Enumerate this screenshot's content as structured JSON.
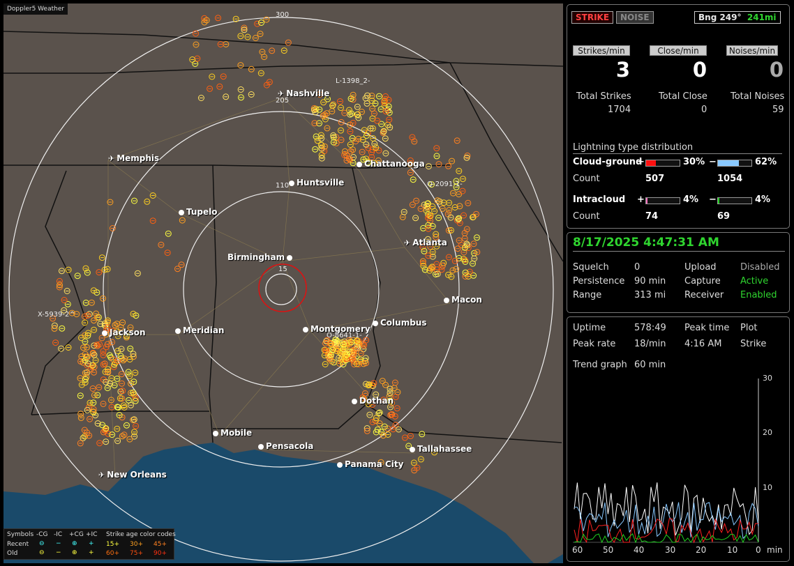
{
  "map": {
    "title": "Doppler5 Weather",
    "range_labels": [
      "300",
      "205",
      "110",
      "15"
    ],
    "cities": [
      {
        "name": "Nashville",
        "airport": true
      },
      {
        "name": "Memphis",
        "airport": true
      },
      {
        "name": "Chattanooga",
        "airport": false
      },
      {
        "name": "Huntsville",
        "airport": false
      },
      {
        "name": "Tupelo",
        "airport": false
      },
      {
        "name": "Atlanta",
        "airport": true
      },
      {
        "name": "Birmingham",
        "airport": false
      },
      {
        "name": "Macon",
        "airport": false
      },
      {
        "name": "Jackson",
        "airport": false
      },
      {
        "name": "Meridian",
        "airport": false
      },
      {
        "name": "Montgomery",
        "airport": false
      },
      {
        "name": "Columbus",
        "airport": false
      },
      {
        "name": "Dothan",
        "airport": false
      },
      {
        "name": "Mobile",
        "airport": false
      },
      {
        "name": "Pensacola",
        "airport": false
      },
      {
        "name": "Tallahassee",
        "airport": false
      },
      {
        "name": "Panama City",
        "airport": false
      },
      {
        "name": "New Orleans",
        "airport": true
      }
    ],
    "cells": [
      "L-1398_2-",
      "Q-2091-1-",
      "X-5939-2^",
      "O-8641-1-"
    ]
  },
  "legend": {
    "symbols_label": "Symbols",
    "cols": [
      "-CG",
      "-IC",
      "+CG",
      "+IC"
    ],
    "age_label": "Strike age color codes",
    "recent_label": "Recent",
    "old_label": "Old",
    "recent_symbols": [
      "⊖",
      "−",
      "⊕",
      "+"
    ],
    "old_symbols": [
      "⊖",
      "−",
      "⊕",
      "+"
    ],
    "recent_ages": [
      "15+",
      "30+",
      "45+"
    ],
    "old_ages": [
      "60+",
      "75+",
      "90+"
    ]
  },
  "top": {
    "strike_label": "STRIKE",
    "noise_label": "NOISE",
    "bearing_label": "Bng 249°",
    "bearing_distance": "241mi",
    "rates": [
      {
        "label": "Strikes/min",
        "value": "3"
      },
      {
        "label": "Close/min",
        "value": "0"
      },
      {
        "label": "Noises/min",
        "value": "0"
      }
    ],
    "totals": [
      {
        "label": "Total Strikes",
        "value": "1704"
      },
      {
        "label": "Total Close",
        "value": "0"
      },
      {
        "label": "Total Noises",
        "value": "59"
      }
    ],
    "dist_title": "Lightning type distribution",
    "cg_label": "Cloud-ground",
    "ic_label": "Intracloud",
    "count_label": "Count",
    "plus": "+",
    "minus": "−",
    "cg_pos_pct": "30%",
    "cg_pos_frac": 0.3,
    "cg_pos_count": "507",
    "cg_neg_pct": "62%",
    "cg_neg_frac": 0.62,
    "cg_neg_count": "1054",
    "ic_pos_pct": "4%",
    "ic_pos_frac": 0.04,
    "ic_pos_count": "74",
    "ic_neg_pct": "4%",
    "ic_neg_frac": 0.04,
    "ic_neg_count": "69"
  },
  "status": {
    "datetime": "8/17/2025 4:47:31 AM",
    "rows": [
      {
        "k1": "Squelch",
        "v1": "0",
        "k2": "Upload",
        "v2": "Disabled"
      },
      {
        "k1": "Persistence",
        "v1": "90 min",
        "k2": "Capture",
        "v2": "Active"
      },
      {
        "k1": "Range",
        "v1": "313 mi",
        "k2": "Receiver",
        "v2": "Enabled"
      }
    ]
  },
  "trend": {
    "uptime_label": "Uptime",
    "uptime": "578:49",
    "peak_time_label": "Peak time",
    "peak_time": "4:16 AM",
    "plot_label": "Plot",
    "plot_value": "Strike",
    "peak_rate_label": "Peak rate",
    "peak_rate": "18/min",
    "trend_label": "Trend graph",
    "trend_value": "60 min",
    "y_ticks": [
      "30",
      "20",
      "10"
    ],
    "x_ticks": [
      "60",
      "50",
      "40",
      "30",
      "20",
      "10",
      "0"
    ],
    "x_unit": "min"
  },
  "colors": {
    "strike_red": "#ff3030",
    "green_status": "#2fd52f",
    "cg_pos": "#ff1010",
    "cg_neg": "#88c8ff",
    "ic_pos": "#ff70c0",
    "ic_neg": "#20d020"
  }
}
